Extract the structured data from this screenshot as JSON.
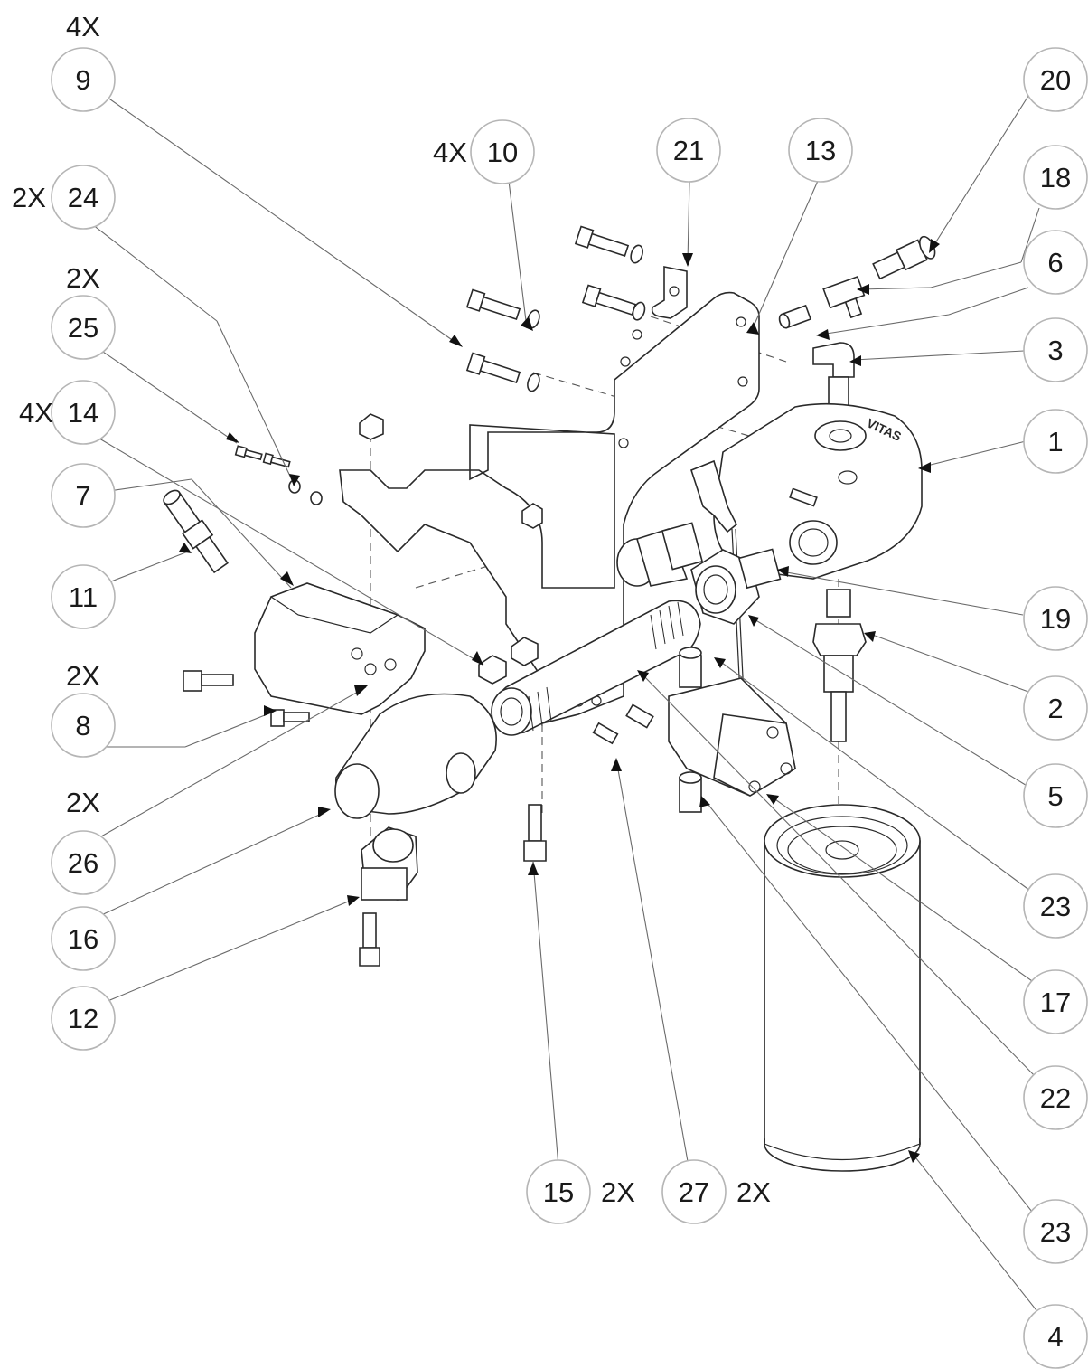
{
  "balloons": [
    {
      "id": "b9",
      "label": "9",
      "qty": "4X"
    },
    {
      "id": "b24",
      "label": "24",
      "qty": "2X"
    },
    {
      "id": "b25",
      "label": "25",
      "qty": "2X"
    },
    {
      "id": "b14",
      "label": "14",
      "qty": "4X"
    },
    {
      "id": "b7",
      "label": "7",
      "qty": ""
    },
    {
      "id": "b11",
      "label": "11",
      "qty": ""
    },
    {
      "id": "b8",
      "label": "8",
      "qty": "2X"
    },
    {
      "id": "b26",
      "label": "26",
      "qty": "2X"
    },
    {
      "id": "b16",
      "label": "16",
      "qty": ""
    },
    {
      "id": "b12",
      "label": "12",
      "qty": ""
    },
    {
      "id": "b10",
      "label": "10",
      "qty": "4X"
    },
    {
      "id": "b21",
      "label": "21",
      "qty": ""
    },
    {
      "id": "b13",
      "label": "13",
      "qty": ""
    },
    {
      "id": "b20",
      "label": "20",
      "qty": ""
    },
    {
      "id": "b18",
      "label": "18",
      "qty": ""
    },
    {
      "id": "b6",
      "label": "6",
      "qty": ""
    },
    {
      "id": "b3",
      "label": "3",
      "qty": ""
    },
    {
      "id": "b1",
      "label": "1",
      "qty": ""
    },
    {
      "id": "b19",
      "label": "19",
      "qty": ""
    },
    {
      "id": "b2",
      "label": "2",
      "qty": ""
    },
    {
      "id": "b5",
      "label": "5",
      "qty": ""
    },
    {
      "id": "b23a",
      "label": "23",
      "qty": ""
    },
    {
      "id": "b17",
      "label": "17",
      "qty": ""
    },
    {
      "id": "b22",
      "label": "22",
      "qty": ""
    },
    {
      "id": "b23b",
      "label": "23",
      "qty": ""
    },
    {
      "id": "b4",
      "label": "4",
      "qty": ""
    },
    {
      "id": "b15",
      "label": "15",
      "qty": "2X"
    },
    {
      "id": "b27",
      "label": "27",
      "qty": "2X"
    }
  ],
  "block_marking": "VITAS",
  "colors": {
    "line": "#2a2a2a",
    "leader": "#6a6a6a",
    "balloon_stroke": "#b5b5b5"
  }
}
